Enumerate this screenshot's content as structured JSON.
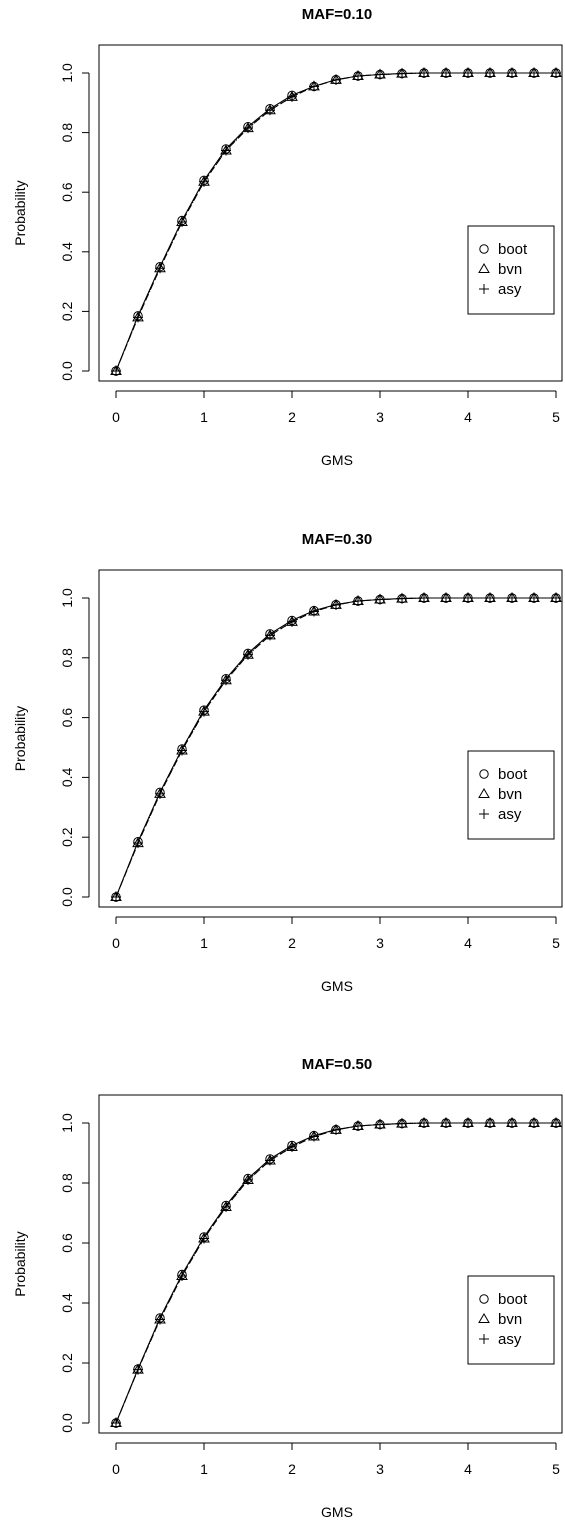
{
  "chart_data": [
    {
      "type": "line",
      "title": "MAF=0.10",
      "xlabel": "GMS",
      "ylabel": "Probability",
      "xlim": [
        0,
        5
      ],
      "ylim": [
        0,
        1
      ],
      "x_ticks": [
        "0",
        "1",
        "2",
        "3",
        "4",
        "5"
      ],
      "y_ticks": [
        "0.0",
        "0.2",
        "0.4",
        "0.6",
        "0.8",
        "1.0"
      ],
      "legend": [
        "boot",
        "bvn",
        "asy"
      ],
      "legend_position": "right",
      "x": [
        0,
        0.25,
        0.5,
        0.75,
        1,
        1.25,
        1.5,
        1.75,
        2,
        2.25,
        2.5,
        2.75,
        3,
        3.25,
        3.5,
        3.75,
        4,
        4.25,
        4.5,
        4.75,
        5
      ],
      "series": [
        {
          "name": "boot",
          "marker": "circle",
          "line": "solid",
          "values": [
            0,
            0.185,
            0.35,
            0.505,
            0.64,
            0.745,
            0.82,
            0.88,
            0.925,
            0.955,
            0.978,
            0.99,
            0.995,
            0.998,
            1,
            1,
            1,
            1,
            1,
            1,
            1
          ]
        },
        {
          "name": "bvn",
          "marker": "triangle",
          "line": "dashed",
          "values": [
            0,
            0.18,
            0.345,
            0.5,
            0.635,
            0.74,
            0.815,
            0.875,
            0.92,
            0.955,
            0.977,
            0.99,
            0.995,
            0.998,
            1,
            1,
            1,
            1,
            1,
            1,
            1
          ]
        },
        {
          "name": "asy",
          "marker": "plus",
          "line": "dotted",
          "values": [
            0,
            0.18,
            0.345,
            0.5,
            0.635,
            0.74,
            0.815,
            0.875,
            0.92,
            0.955,
            0.977,
            0.99,
            0.995,
            0.998,
            1,
            1,
            1,
            1,
            1,
            1,
            1
          ]
        }
      ]
    },
    {
      "type": "line",
      "title": "MAF=0.30",
      "xlabel": "GMS",
      "ylabel": "Probability",
      "xlim": [
        0,
        5
      ],
      "ylim": [
        0,
        1
      ],
      "x_ticks": [
        "0",
        "1",
        "2",
        "3",
        "4",
        "5"
      ],
      "y_ticks": [
        "0.0",
        "0.2",
        "0.4",
        "0.6",
        "0.8",
        "1.0"
      ],
      "legend": [
        "boot",
        "bvn",
        "asy"
      ],
      "legend_position": "right",
      "x": [
        0,
        0.25,
        0.5,
        0.75,
        1,
        1.25,
        1.5,
        1.75,
        2,
        2.25,
        2.5,
        2.75,
        3,
        3.25,
        3.5,
        3.75,
        4,
        4.25,
        4.5,
        4.75,
        5
      ],
      "series": [
        {
          "name": "boot",
          "marker": "circle",
          "line": "solid",
          "values": [
            0,
            0.185,
            0.35,
            0.495,
            0.625,
            0.73,
            0.815,
            0.88,
            0.925,
            0.958,
            0.978,
            0.99,
            0.995,
            0.998,
            1,
            1,
            1,
            1,
            1,
            1,
            1
          ]
        },
        {
          "name": "bvn",
          "marker": "triangle",
          "line": "dashed",
          "values": [
            0,
            0.18,
            0.345,
            0.49,
            0.62,
            0.725,
            0.81,
            0.875,
            0.92,
            0.955,
            0.977,
            0.99,
            0.995,
            0.998,
            1,
            1,
            1,
            1,
            1,
            1,
            1
          ]
        },
        {
          "name": "asy",
          "marker": "plus",
          "line": "dotted",
          "values": [
            0,
            0.18,
            0.345,
            0.49,
            0.62,
            0.725,
            0.81,
            0.875,
            0.92,
            0.955,
            0.977,
            0.99,
            0.995,
            0.998,
            1,
            1,
            1,
            1,
            1,
            1,
            1
          ]
        }
      ]
    },
    {
      "type": "line",
      "title": "MAF=0.50",
      "xlabel": "GMS",
      "ylabel": "Probability",
      "xlim": [
        0,
        5
      ],
      "ylim": [
        0,
        1
      ],
      "x_ticks": [
        "0",
        "1",
        "2",
        "3",
        "4",
        "5"
      ],
      "y_ticks": [
        "0.0",
        "0.2",
        "0.4",
        "0.6",
        "0.8",
        "1.0"
      ],
      "legend": [
        "boot",
        "bvn",
        "asy"
      ],
      "legend_position": "right",
      "x": [
        0,
        0.25,
        0.5,
        0.75,
        1,
        1.25,
        1.5,
        1.75,
        2,
        2.25,
        2.5,
        2.75,
        3,
        3.25,
        3.5,
        3.75,
        4,
        4.25,
        4.5,
        4.75,
        5
      ],
      "series": [
        {
          "name": "boot",
          "marker": "circle",
          "line": "solid",
          "values": [
            0,
            0.18,
            0.35,
            0.495,
            0.62,
            0.725,
            0.815,
            0.88,
            0.925,
            0.958,
            0.978,
            0.99,
            0.995,
            0.998,
            1,
            1,
            1,
            1,
            1,
            1,
            1
          ]
        },
        {
          "name": "bvn",
          "marker": "triangle",
          "line": "dashed",
          "values": [
            0,
            0.178,
            0.345,
            0.49,
            0.615,
            0.72,
            0.81,
            0.875,
            0.92,
            0.955,
            0.977,
            0.99,
            0.995,
            0.998,
            1,
            1,
            1,
            1,
            1,
            1,
            1
          ]
        },
        {
          "name": "asy",
          "marker": "plus",
          "line": "dotted",
          "values": [
            0,
            0.178,
            0.345,
            0.49,
            0.615,
            0.72,
            0.81,
            0.875,
            0.92,
            0.955,
            0.977,
            0.99,
            0.995,
            0.998,
            1,
            1,
            1,
            1,
            1,
            1,
            1
          ]
        }
      ]
    }
  ]
}
